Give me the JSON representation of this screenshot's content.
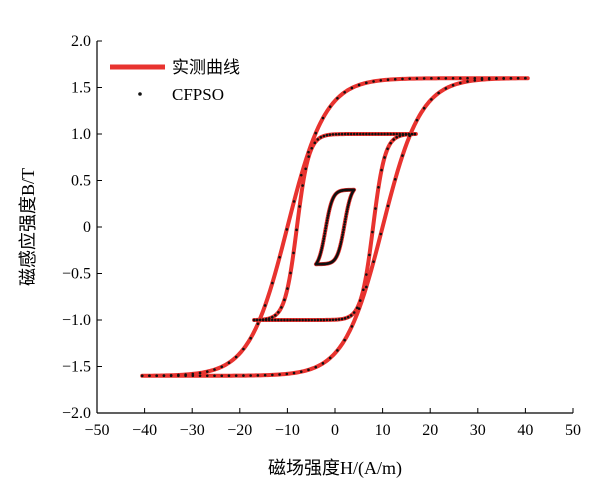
{
  "chart_data": {
    "type": "line",
    "title": "",
    "xlabel": "磁场强度H/(A/m)",
    "ylabel": "磁感应强度B/T",
    "xlim": [
      -50,
      50
    ],
    "ylim": [
      -2.0,
      2.0
    ],
    "x_ticks": [
      -50,
      -40,
      -30,
      -20,
      -10,
      0,
      10,
      20,
      30,
      40,
      50
    ],
    "y_ticks": [
      -2.0,
      -1.5,
      -1.0,
      -0.5,
      0,
      0.5,
      1.0,
      1.5,
      2.0
    ],
    "x_tick_labels": [
      "−50",
      "−40",
      "−30",
      "−20",
      "−10",
      "0",
      "10",
      "20",
      "30",
      "40",
      "50"
    ],
    "y_tick_labels": [
      "−2.0",
      "−1.5",
      "−1.0",
      "−0.5",
      "0",
      "0.5",
      "1.0",
      "1.5",
      "2.0"
    ],
    "grid": false,
    "legend_position": "top-left",
    "loops": [
      {
        "Hmax": 40.5,
        "Bmax": 1.6,
        "Hc": 10.0,
        "Br": 1.42,
        "k": 8.0,
        "curv": 1.3
      },
      {
        "Hmax": 17.0,
        "Bmax": 1.0,
        "Hc": 8.0,
        "Br": 0.83,
        "k": 2.5,
        "curv": 1.1
      },
      {
        "Hmax": 4.0,
        "Bmax": 0.4,
        "Hc": 2.0,
        "Br": 0.2,
        "k": 1.5,
        "curv": 0.9
      }
    ],
    "series": [
      {
        "name": "实测曲线",
        "style": "line",
        "color": "#e8332f"
      },
      {
        "name": "CFPSO",
        "style": "dots",
        "color": "#111111"
      }
    ]
  }
}
